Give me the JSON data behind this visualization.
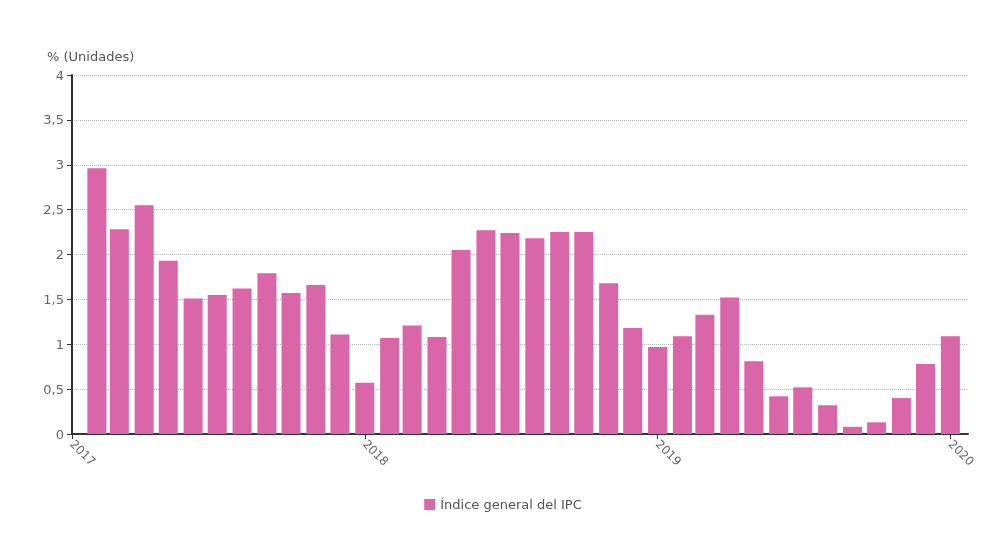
{
  "chart_data": {
    "type": "bar",
    "ylabel": "% (Unidades)",
    "x": [
      "2017-02",
      "2017-03",
      "2017-04",
      "2017-05",
      "2017-06",
      "2017-07",
      "2017-08",
      "2017-09",
      "2017-10",
      "2017-11",
      "2017-12",
      "2018-01",
      "2018-02",
      "2018-03",
      "2018-04",
      "2018-05",
      "2018-06",
      "2018-07",
      "2018-08",
      "2018-09",
      "2018-10",
      "2018-11",
      "2018-12",
      "2019-01",
      "2019-02",
      "2019-03",
      "2019-04",
      "2019-05",
      "2019-06",
      "2019-07",
      "2019-08",
      "2019-09",
      "2019-10",
      "2019-11",
      "2019-12",
      "2020-01"
    ],
    "series": [
      {
        "name": "Índice general del IPC",
        "color": "#d966a8",
        "values": [
          2.96,
          2.28,
          2.55,
          1.93,
          1.51,
          1.55,
          1.62,
          1.79,
          1.57,
          1.66,
          1.11,
          0.57,
          1.07,
          1.21,
          1.08,
          2.05,
          2.27,
          2.24,
          2.18,
          2.25,
          2.25,
          1.68,
          1.18,
          0.97,
          1.09,
          1.33,
          1.52,
          0.81,
          0.42,
          0.52,
          0.32,
          0.08,
          0.13,
          0.4,
          0.78,
          1.09
        ]
      }
    ],
    "xlim": [
      "2017-01-01",
      "2020-01-23"
    ],
    "xticks": [
      {
        "value": "2017",
        "label": "2017"
      },
      {
        "value": "2018",
        "label": "2018"
      },
      {
        "value": "2019",
        "label": "2019"
      },
      {
        "value": "2020",
        "label": "2020"
      }
    ],
    "ylim": [
      0,
      4
    ],
    "yticks": [
      0,
      {
        "value": 0.5,
        "label": "0,5"
      },
      1,
      {
        "value": 1.5,
        "label": "1,5"
      },
      2,
      {
        "value": 2.5,
        "label": "2,5"
      },
      3,
      {
        "value": 3.5,
        "label": "3,5"
      },
      4
    ],
    "grid": "y",
    "legend": "bottom"
  }
}
